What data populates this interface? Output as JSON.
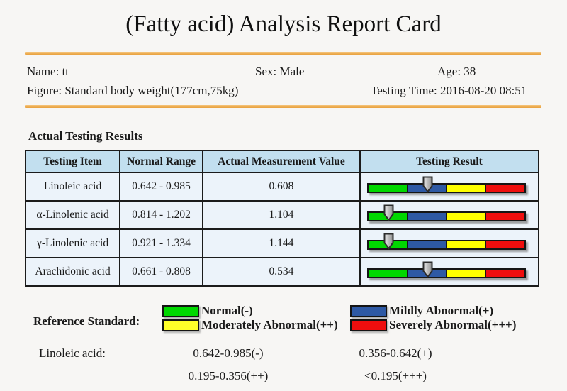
{
  "title": "(Fatty acid) Analysis Report Card",
  "patient": {
    "name": "Name: tt",
    "sex": "Sex: Male",
    "age": "Age: 38",
    "figure": "Figure: Standard body weight(177cm,75kg)",
    "testing_time": "Testing Time: 2016-08-20 08:51"
  },
  "results": {
    "heading": "Actual Testing Results",
    "columns": [
      "Testing Item",
      "Normal Range",
      "Actual Measurement Value",
      "Testing Result"
    ],
    "rows": [
      {
        "item": "Linoleic acid",
        "range": "0.642 - 0.985",
        "value": "0.608",
        "result_level": "mildly-abnormal",
        "pointer_percent": 38
      },
      {
        "item": "α-Linolenic acid",
        "range": "0.814 - 1.202",
        "value": "1.104",
        "result_level": "normal",
        "pointer_percent": 13
      },
      {
        "item": "γ-Linolenic acid",
        "range": "0.921 - 1.334",
        "value": "1.144",
        "result_level": "normal",
        "pointer_percent": 13
      },
      {
        "item": "Arachidonic acid",
        "range": "0.661 - 0.808",
        "value": "0.534",
        "result_level": "mildly-abnormal",
        "pointer_percent": 38
      }
    ]
  },
  "reference": {
    "label": "Reference Standard:",
    "legend": [
      {
        "label": "Normal(-)",
        "color": "#00d800"
      },
      {
        "label": "Mildly Abnormal(+)",
        "color": "#2e59a4"
      },
      {
        "label": "Moderately Abnormal(++)",
        "color": "#ffff29"
      },
      {
        "label": "Severely Abnormal(+++)",
        "color": "#ef0e0e"
      }
    ],
    "linoleic": {
      "label": "Linoleic acid:",
      "range_normal": "0.642-0.985(-)",
      "range_mild": "0.356-0.642(+)",
      "range_moderate": "0.195-0.356(++)",
      "range_severe": "<0.195(+++)"
    }
  },
  "colors": {
    "accent_orange": "#e8a13c",
    "table_header_bg": "#c2dfef",
    "table_cell_bg": "#ecf3fa",
    "bar_segments": [
      "#00d800",
      "#2e59a4",
      "#ffff00",
      "#ef0e0e"
    ],
    "pointer_gray": "#b5b5b5"
  }
}
